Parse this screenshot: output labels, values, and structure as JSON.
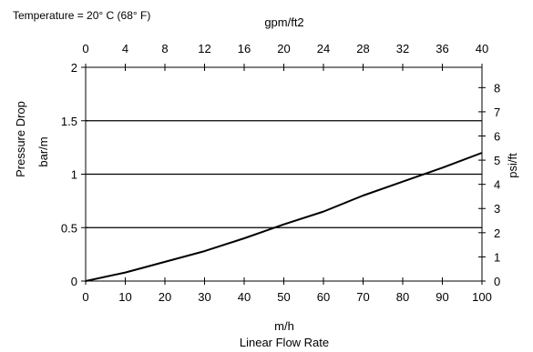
{
  "chart_data": {
    "type": "line",
    "note": "Temperature = 20° C (68° F)",
    "top_axis": {
      "label": "gpm/ft2",
      "range": [
        0,
        40
      ],
      "ticks": [
        0,
        4,
        8,
        12,
        16,
        20,
        24,
        28,
        32,
        36,
        40
      ]
    },
    "bottom_axis": {
      "unit": "m/h",
      "label": "Linear Flow Rate",
      "range": [
        0,
        100
      ],
      "ticks": [
        0,
        10,
        20,
        30,
        40,
        50,
        60,
        70,
        80,
        90,
        100
      ]
    },
    "left_axis": {
      "label": "Pressure Drop",
      "unit": "bar/m",
      "range": [
        0,
        2
      ],
      "ticks": [
        0,
        0.5,
        1,
        1.5,
        2
      ],
      "tick_labels": [
        "0",
        "0.5",
        "1",
        "1.5",
        "2"
      ]
    },
    "right_axis": {
      "label": "psi/ft",
      "range": [
        0,
        8.84
      ],
      "ticks": [
        0,
        1,
        2,
        3,
        4,
        5,
        6,
        7,
        8
      ]
    },
    "gridlines_at_left_values": [
      0.5,
      1,
      1.5
    ],
    "series": [
      {
        "x": [
          0,
          10,
          20,
          30,
          40,
          50,
          60,
          70,
          80,
          90,
          100
        ],
        "y": [
          0,
          0.08,
          0.18,
          0.28,
          0.4,
          0.53,
          0.65,
          0.8,
          0.93,
          1.06,
          1.2
        ]
      }
    ]
  }
}
